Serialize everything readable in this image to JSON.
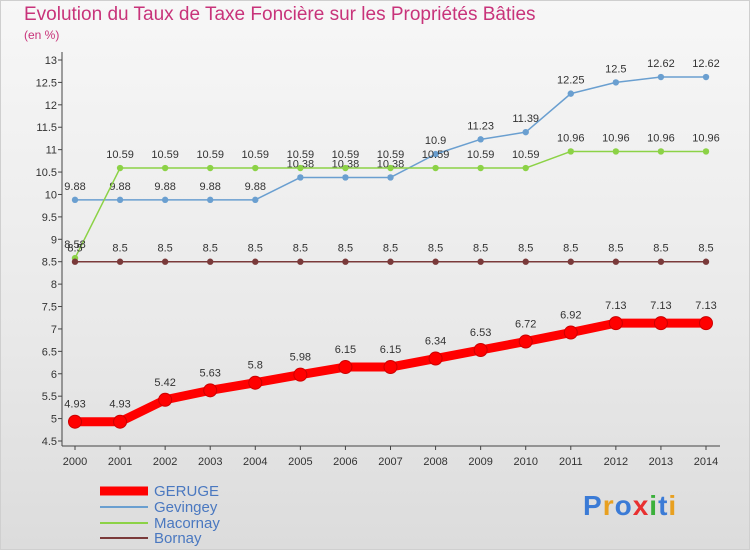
{
  "title": "Evolution du Taux de Taxe Foncière sur les Propriétés Bâties",
  "subtitle": "(en %)",
  "logo_text": "Proxiti",
  "chart_data": {
    "type": "line",
    "x": [
      "2000",
      "2001",
      "2002",
      "2003",
      "2004",
      "2005",
      "2006",
      "2007",
      "2008",
      "2009",
      "2010",
      "2011",
      "2012",
      "2013",
      "2014"
    ],
    "ylim": [
      4.5,
      13
    ],
    "yticks": [
      "4.5",
      "5",
      "5.5",
      "6",
      "6.5",
      "7",
      "7.5",
      "8",
      "8.5",
      "9",
      "9.5",
      "10",
      "10.5",
      "11",
      "11.5",
      "12",
      "12.5",
      "13"
    ],
    "grid": false,
    "legend": "bottom-left",
    "series": [
      {
        "name": "Gevingey",
        "color": "#6a9fd0",
        "values": [
          9.88,
          9.88,
          9.88,
          9.88,
          9.88,
          10.38,
          10.38,
          10.38,
          10.9,
          11.23,
          11.39,
          12.25,
          12.5,
          12.62,
          12.62
        ],
        "labels": [
          "9.88",
          "9.88",
          "9.88",
          "9.88",
          "9.88",
          "10.38",
          "10.38",
          "10.38",
          "10.9",
          "11.23",
          "11.39",
          "12.25",
          "12.5",
          "12.62",
          "12.62"
        ]
      },
      {
        "name": "Macornay",
        "color": "#8cd246",
        "values": [
          8.58,
          10.59,
          10.59,
          10.59,
          10.59,
          10.59,
          10.59,
          10.59,
          10.59,
          10.59,
          10.59,
          10.96,
          10.96,
          10.96,
          10.96
        ],
        "labels": [
          "8.58",
          "10.59",
          "10.59",
          "10.59",
          "10.59",
          "10.59",
          "10.59",
          "10.59",
          "10.59",
          "10.59",
          "10.59",
          "10.96",
          "10.96",
          "10.96",
          "10.96"
        ]
      },
      {
        "name": "Bornay",
        "color": "#7a3a3a",
        "values": [
          8.5,
          8.5,
          8.5,
          8.5,
          8.5,
          8.5,
          8.5,
          8.5,
          8.5,
          8.5,
          8.5,
          8.5,
          8.5,
          8.5,
          8.5
        ],
        "labels": [
          "8.5",
          "8.5",
          "8.5",
          "8.5",
          "8.5",
          "8.5",
          "8.5",
          "8.5",
          "8.5",
          "8.5",
          "8.5",
          "8.5",
          "8.5",
          "8.5",
          "8.5"
        ]
      },
      {
        "name": "GERUGE",
        "color": "#ff0000",
        "values": [
          4.93,
          4.93,
          5.42,
          5.63,
          5.8,
          5.98,
          6.15,
          6.15,
          6.34,
          6.53,
          6.72,
          6.92,
          7.13,
          7.13,
          7.13
        ],
        "labels": [
          "4.93",
          "4.93",
          "5.42",
          "5.63",
          "5.8",
          "5.98",
          "6.15",
          "6.15",
          "6.34",
          "6.53",
          "6.72",
          "6.92",
          "7.13",
          "7.13",
          "7.13"
        ]
      }
    ],
    "legend_order": [
      "GERUGE",
      "Gevingey",
      "Macornay",
      "Bornay"
    ]
  }
}
